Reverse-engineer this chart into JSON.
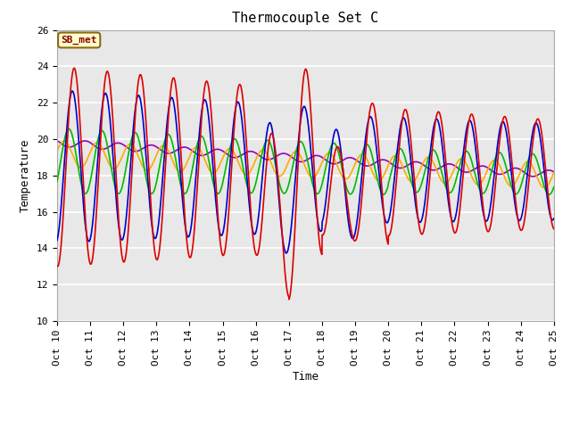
{
  "title": "Thermocouple Set C",
  "xlabel": "Time",
  "ylabel": "Temperature",
  "ylim": [
    10,
    26
  ],
  "xlim": [
    0,
    15
  ],
  "x_tick_labels": [
    "Oct 10",
    "Oct 11",
    "Oct 12",
    "Oct 13",
    "Oct 14",
    "Oct 15",
    "Oct 16",
    "Oct 17",
    "Oct 18",
    "Oct 19",
    "Oct 20",
    "Oct 21",
    "Oct 22",
    "Oct 23",
    "Oct 24",
    "Oct 25"
  ],
  "colors": {
    "-2cm": "#dd0000",
    "-4cm": "#0000cc",
    "-8cm": "#00bb00",
    "-16cm": "#ffaa00",
    "-32cm": "#9900bb"
  },
  "lw": 1.2,
  "annotation_text": "SB_met",
  "bg_color": "#e8e8e8",
  "fig_bg": "#ffffff",
  "grid_color": "#ffffff",
  "title_fontsize": 11,
  "label_fontsize": 9,
  "tick_fontsize": 8
}
